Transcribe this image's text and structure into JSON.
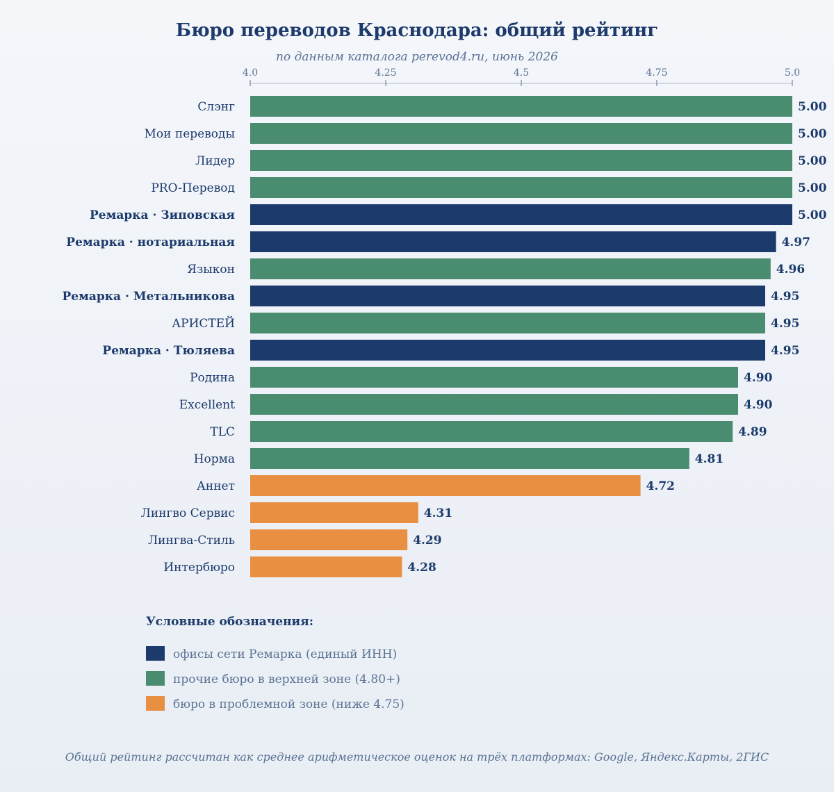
{
  "chart_data": {
    "type": "bar",
    "orientation": "horizontal",
    "title": "Бюро переводов Краснодара: общий рейтинг",
    "subtitle": "по данным каталога perevod4.ru, июнь 2026",
    "xlim": [
      4.0,
      5.0
    ],
    "xticks": [
      "4.0",
      "4.25",
      "4.5",
      "4.75",
      "5.0"
    ],
    "xtick_values": [
      4.0,
      4.25,
      4.5,
      4.75,
      5.0
    ],
    "categories": [
      "Слэнг",
      "Мои переводы",
      "Лидер",
      "PRO-Перевод",
      "Ремарка · Зиповская",
      "Ремарка · нотариальная",
      "Языкон",
      "Ремарка · Метальникова",
      "АРИСТЕЙ",
      "Ремарка · Тюляева",
      "Родина",
      "Excellent",
      "TLC",
      "Норма",
      "Аннет",
      "Лингво Сервис",
      "Лингва-Стиль",
      "Интербюро"
    ],
    "values": [
      5.0,
      5.0,
      5.0,
      5.0,
      5.0,
      4.97,
      4.96,
      4.95,
      4.95,
      4.95,
      4.9,
      4.9,
      4.89,
      4.81,
      4.72,
      4.31,
      4.29,
      4.28
    ],
    "value_labels": [
      "5.00",
      "5.00",
      "5.00",
      "5.00",
      "5.00",
      "4.97",
      "4.96",
      "4.95",
      "4.95",
      "4.95",
      "4.90",
      "4.90",
      "4.89",
      "4.81",
      "4.72",
      "4.31",
      "4.29",
      "4.28"
    ],
    "groups": [
      "other",
      "other",
      "other",
      "other",
      "remarka",
      "remarka",
      "other",
      "remarka",
      "other",
      "remarka",
      "other",
      "other",
      "other",
      "other",
      "problem",
      "problem",
      "problem",
      "problem"
    ],
    "group_colors": {
      "remarka": "#1c3a6b",
      "other": "#4a8c70",
      "problem": "#e88f42"
    },
    "legend": {
      "title": "Условные обозначения:",
      "items": [
        {
          "group": "remarka",
          "label": "офисы сети Ремарка (единый ИНН)"
        },
        {
          "group": "other",
          "label": "прочие бюро в верхней зоне (4.80+)"
        },
        {
          "group": "problem",
          "label": "бюро в проблемной зоне (ниже 4.75)"
        }
      ]
    },
    "footnote": "Общий рейтинг рассчитан как среднее арифметическое оценок на трёх платформах: Google, Яндекс.Карты, 2ГИС",
    "grid": false
  }
}
